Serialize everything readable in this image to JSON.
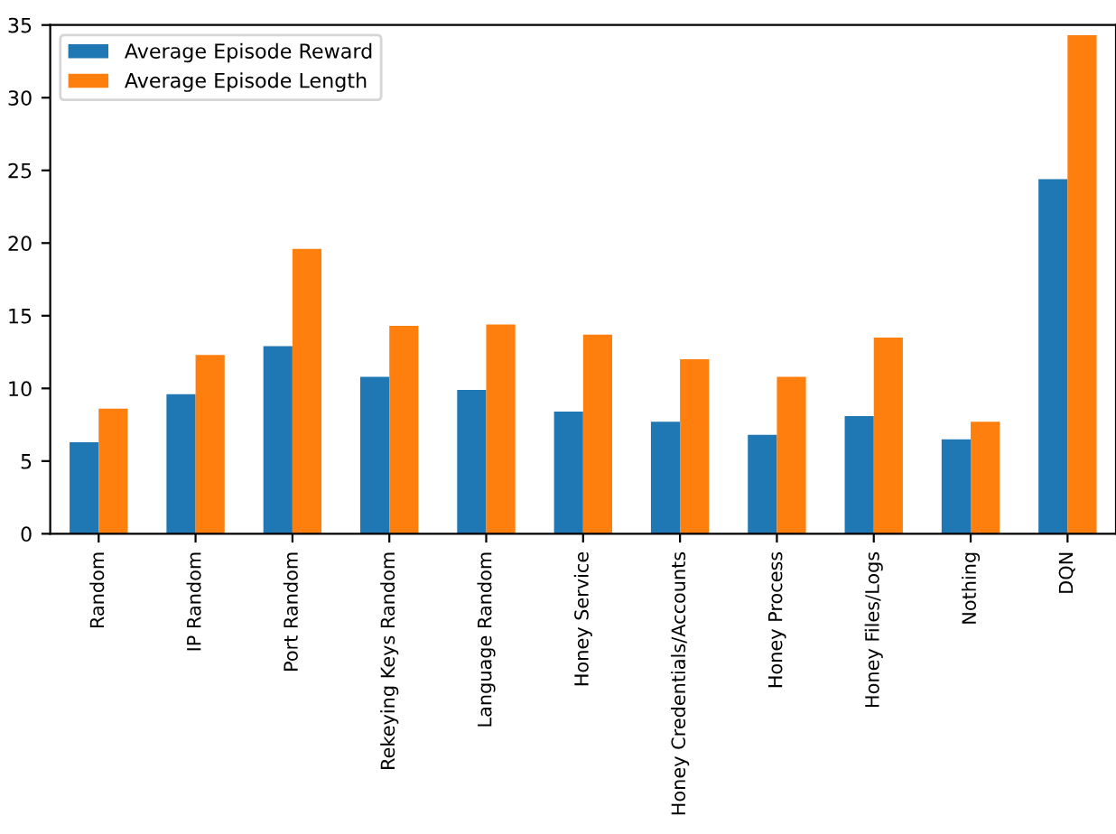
{
  "chart_data": {
    "type": "bar",
    "categories": [
      "Random",
      "IP Random",
      "Port Random",
      "Rekeying Keys Random",
      "Language Random",
      "Honey Service",
      "Honey Credentials/Accounts",
      "Honey Process",
      "Honey Files/Logs",
      "Nothing",
      "DQN"
    ],
    "series": [
      {
        "name": "Average Episode Reward",
        "color": "#1f77b4",
        "values": [
          6.3,
          9.6,
          12.9,
          10.8,
          9.9,
          8.4,
          7.7,
          6.8,
          8.1,
          6.5,
          24.4
        ]
      },
      {
        "name": "Average Episode Length",
        "color": "#ff7f0e",
        "values": [
          8.6,
          12.3,
          19.6,
          14.3,
          14.4,
          13.7,
          12.0,
          10.8,
          13.5,
          7.7,
          34.3
        ]
      }
    ],
    "ylim": [
      0,
      35
    ],
    "yticks": [
      0,
      5,
      10,
      15,
      20,
      25,
      30,
      35
    ],
    "grid": false,
    "legend": "top left"
  }
}
